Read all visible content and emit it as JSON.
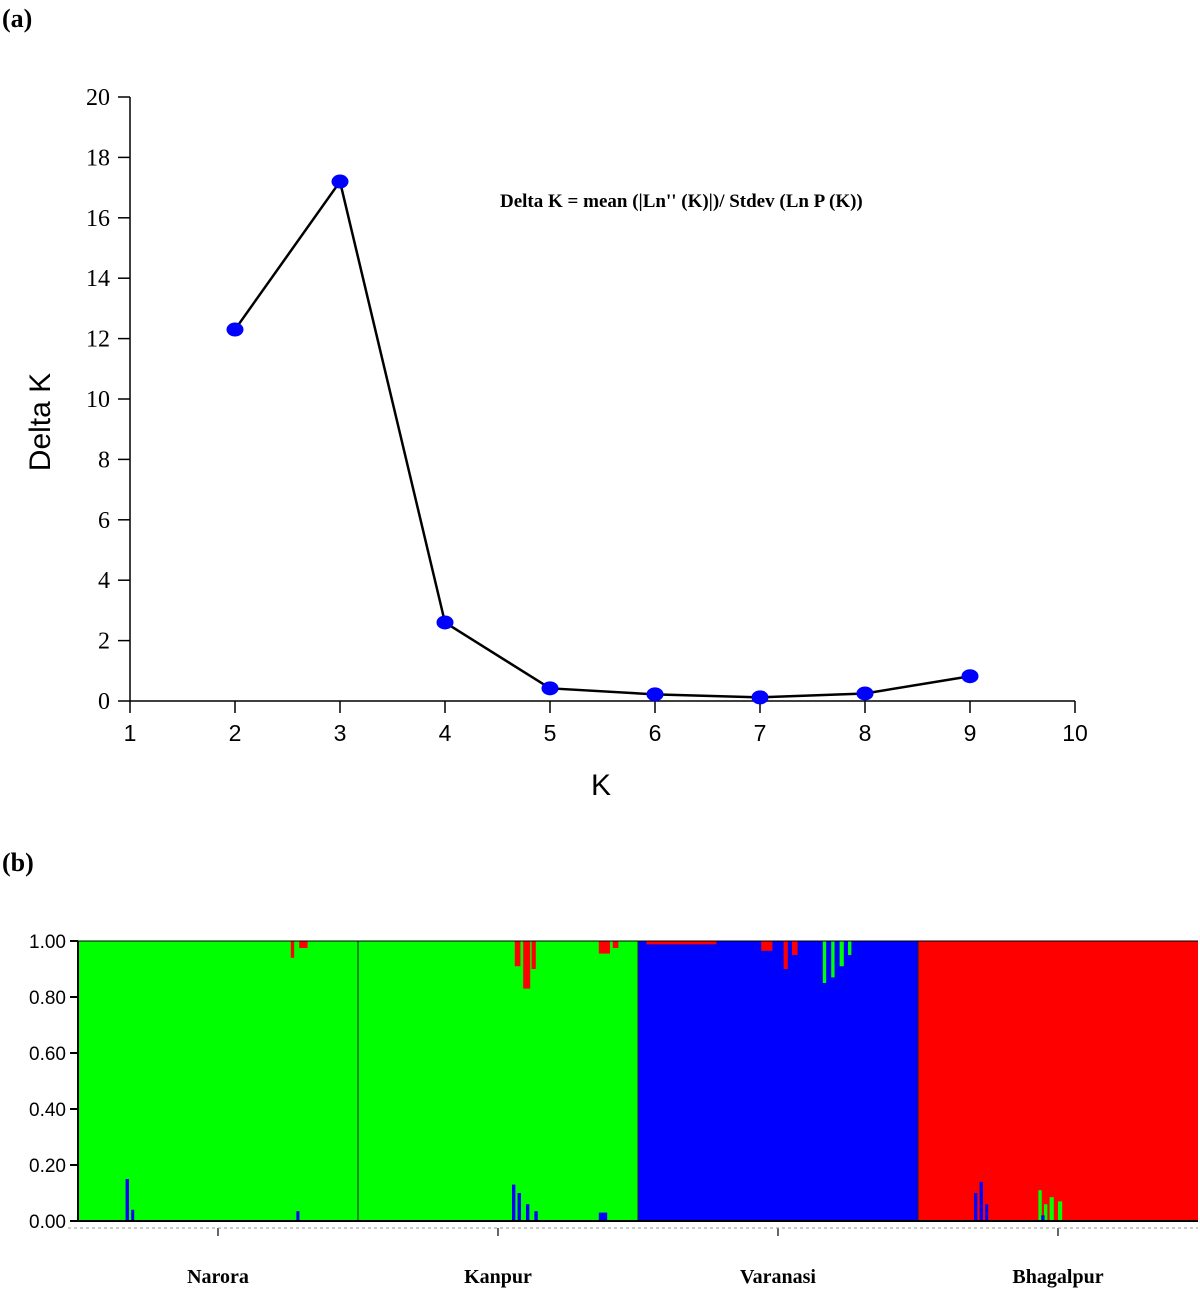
{
  "panel_a": {
    "label": "(a)"
  },
  "panel_b": {
    "label": "(b)"
  },
  "chart_data": [
    {
      "type": "line",
      "title": "",
      "annotation": "Delta K = mean (|Ln'' (K)|)/ Stdev (Ln P (K))",
      "xlabel": "K",
      "ylabel": "Delta K",
      "xlim": [
        1,
        10
      ],
      "ylim": [
        0,
        20
      ],
      "x_ticks": [
        1,
        2,
        3,
        4,
        5,
        6,
        7,
        8,
        9,
        10
      ],
      "y_ticks": [
        0,
        2,
        4,
        6,
        8,
        10,
        12,
        14,
        16,
        18,
        20
      ],
      "grid": false,
      "series": [
        {
          "x": [
            2,
            3,
            4,
            5,
            6,
            7,
            8,
            9
          ],
          "y": [
            12.3,
            17.2,
            2.6,
            0.42,
            0.22,
            0.12,
            0.25,
            0.82
          ],
          "line_color": "#000000",
          "marker_color": "#0000ff"
        }
      ]
    },
    {
      "type": "bar",
      "subtype": "stacked-structure-plot",
      "title": "",
      "ylim": [
        0,
        1
      ],
      "y_ticks": [
        "0.00",
        "0.20",
        "0.40",
        "0.60",
        "0.80",
        "1.00"
      ],
      "grid": false,
      "colors": {
        "green": "#00ff00",
        "blue": "#0000ff",
        "red": "#ff0000"
      },
      "groups": [
        {
          "name": "Narora",
          "dominant": "green",
          "admixture": [
            {
              "pos": 0.17,
              "width": 0.012,
              "color": "blue",
              "from": "bottom",
              "value": 0.15
            },
            {
              "pos": 0.19,
              "width": 0.01,
              "color": "blue",
              "from": "bottom",
              "value": 0.04
            },
            {
              "pos": 0.78,
              "width": 0.01,
              "color": "blue",
              "from": "bottom",
              "value": 0.035
            },
            {
              "pos": 0.76,
              "width": 0.012,
              "color": "red",
              "from": "top",
              "value": 0.06
            },
            {
              "pos": 0.79,
              "width": 0.03,
              "color": "red",
              "from": "top",
              "value": 0.025
            }
          ]
        },
        {
          "name": "Kanpur",
          "dominant": "green",
          "admixture": [
            {
              "pos": 0.55,
              "width": 0.012,
              "color": "blue",
              "from": "bottom",
              "value": 0.13
            },
            {
              "pos": 0.57,
              "width": 0.012,
              "color": "blue",
              "from": "bottom",
              "value": 0.1
            },
            {
              "pos": 0.6,
              "width": 0.012,
              "color": "blue",
              "from": "bottom",
              "value": 0.06
            },
            {
              "pos": 0.63,
              "width": 0.012,
              "color": "blue",
              "from": "bottom",
              "value": 0.035
            },
            {
              "pos": 0.86,
              "width": 0.03,
              "color": "blue",
              "from": "bottom",
              "value": 0.03
            },
            {
              "pos": 0.56,
              "width": 0.02,
              "color": "red",
              "from": "top",
              "value": 0.09
            },
            {
              "pos": 0.59,
              "width": 0.025,
              "color": "red",
              "from": "top",
              "value": 0.17
            },
            {
              "pos": 0.62,
              "width": 0.015,
              "color": "red",
              "from": "top",
              "value": 0.1
            },
            {
              "pos": 0.86,
              "width": 0.04,
              "color": "red",
              "from": "top",
              "value": 0.045
            },
            {
              "pos": 0.91,
              "width": 0.02,
              "color": "red",
              "from": "top",
              "value": 0.025
            }
          ]
        },
        {
          "name": "Varanasi",
          "dominant": "blue",
          "admixture": [
            {
              "pos": 0.03,
              "width": 0.25,
              "color": "red",
              "from": "top",
              "value": 0.012
            },
            {
              "pos": 0.44,
              "width": 0.04,
              "color": "red",
              "from": "top",
              "value": 0.035
            },
            {
              "pos": 0.52,
              "width": 0.015,
              "color": "red",
              "from": "top",
              "value": 0.1
            },
            {
              "pos": 0.55,
              "width": 0.02,
              "color": "red",
              "from": "top",
              "value": 0.05
            },
            {
              "pos": 0.66,
              "width": 0.012,
              "color": "green",
              "from": "top",
              "value": 0.15
            },
            {
              "pos": 0.69,
              "width": 0.012,
              "color": "green",
              "from": "top",
              "value": 0.13
            },
            {
              "pos": 0.72,
              "width": 0.015,
              "color": "green",
              "from": "top",
              "value": 0.09
            },
            {
              "pos": 0.75,
              "width": 0.012,
              "color": "green",
              "from": "top",
              "value": 0.05
            }
          ]
        },
        {
          "name": "Bhagalpur",
          "dominant": "red",
          "admixture": [
            {
              "pos": 0.2,
              "width": 0.012,
              "color": "blue",
              "from": "bottom",
              "value": 0.1
            },
            {
              "pos": 0.22,
              "width": 0.012,
              "color": "blue",
              "from": "bottom",
              "value": 0.14
            },
            {
              "pos": 0.24,
              "width": 0.01,
              "color": "blue",
              "from": "bottom",
              "value": 0.06
            },
            {
              "pos": 0.43,
              "width": 0.012,
              "color": "green",
              "from": "bottom",
              "value": 0.11
            },
            {
              "pos": 0.45,
              "width": 0.012,
              "color": "green",
              "from": "bottom",
              "value": 0.06
            },
            {
              "pos": 0.47,
              "width": 0.015,
              "color": "green",
              "from": "bottom",
              "value": 0.085
            },
            {
              "pos": 0.5,
              "width": 0.015,
              "color": "green",
              "from": "bottom",
              "value": 0.07
            },
            {
              "pos": 0.44,
              "width": 0.012,
              "color": "blue",
              "from": "bottom",
              "value": 0.02
            }
          ]
        }
      ]
    }
  ]
}
